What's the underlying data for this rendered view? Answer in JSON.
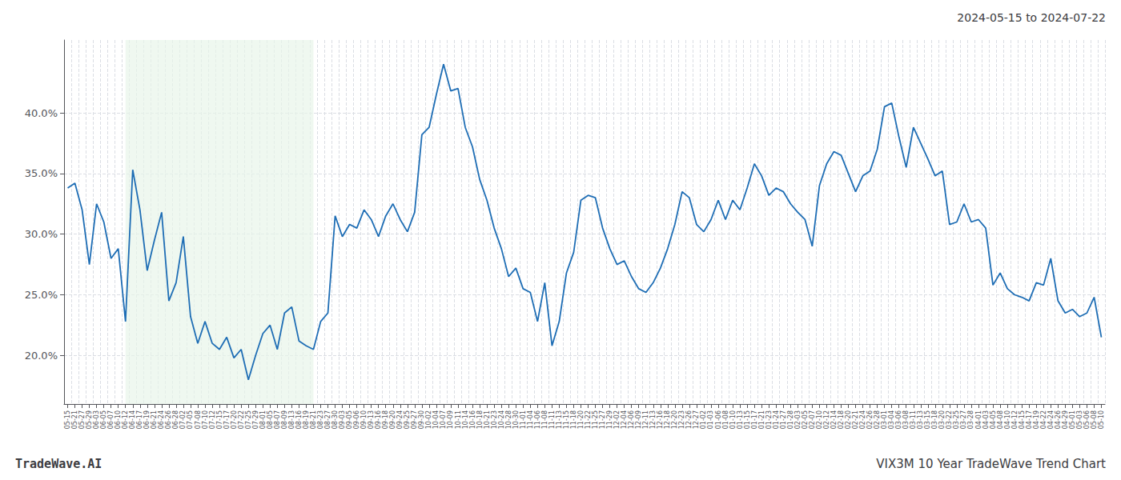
{
  "chart_data": {
    "type": "line",
    "title": "2024-05-15 to 2024-07-22",
    "annotations": [
      "TradeWave.AI",
      "VIX3M 10 Year TradeWave Trend Chart"
    ],
    "color": "#1f6eb5",
    "grid": true,
    "shade": {
      "from": "06-12",
      "to": "08-21",
      "color": "#e8f5e9"
    },
    "ylim": [
      16.0,
      46.0
    ],
    "yticks": [
      {
        "value": 20.0,
        "label": "20.0%"
      },
      {
        "value": 25.0,
        "label": "25.0%"
      },
      {
        "value": 30.0,
        "label": "30.0%"
      },
      {
        "value": 35.0,
        "label": "35.0%"
      },
      {
        "value": 40.0,
        "label": "40.0%"
      }
    ],
    "categories": [
      "05-15",
      "05-21",
      "05-27",
      "05-29",
      "06-03",
      "06-05",
      "06-07",
      "06-10",
      "06-12",
      "06-14",
      "06-17",
      "06-19",
      "06-21",
      "06-24",
      "06-26",
      "06-28",
      "07-02",
      "07-05",
      "07-08",
      "07-10",
      "07-12",
      "07-15",
      "07-17",
      "07-20",
      "07-22",
      "07-25",
      "07-29",
      "08-01",
      "08-05",
      "08-07",
      "08-09",
      "08-13",
      "08-16",
      "08-19",
      "08-21",
      "08-23",
      "08-27",
      "08-30",
      "09-03",
      "09-05",
      "09-06",
      "09-10",
      "09-13",
      "09-16",
      "09-18",
      "09-20",
      "09-24",
      "09-25",
      "09-27",
      "09-30",
      "10-02",
      "10-04",
      "10-07",
      "10-09",
      "10-11",
      "10-14",
      "10-16",
      "10-18",
      "10-21",
      "10-23",
      "10-24",
      "10-28",
      "10-30",
      "11-01",
      "11-04",
      "11-06",
      "11-08",
      "11-11",
      "11-13",
      "11-15",
      "11-18",
      "11-20",
      "11-22",
      "11-25",
      "11-27",
      "11-29",
      "12-02",
      "12-04",
      "12-06",
      "12-09",
      "12-11",
      "12-13",
      "12-16",
      "12-18",
      "12-20",
      "12-23",
      "12-26",
      "12-27",
      "01-02",
      "01-03",
      "01-06",
      "01-08",
      "01-10",
      "01-13",
      "01-15",
      "01-17",
      "01-21",
      "01-23",
      "01-24",
      "01-27",
      "01-28",
      "02-03",
      "02-05",
      "02-07",
      "02-10",
      "02-12",
      "02-14",
      "02-18",
      "02-20",
      "02-21",
      "02-24",
      "02-26",
      "02-28",
      "03-01",
      "03-04",
      "03-06",
      "03-08",
      "03-11",
      "03-13",
      "03-15",
      "03-18",
      "03-20",
      "03-22",
      "03-25",
      "03-27",
      "03-28",
      "04-01",
      "04-03",
      "04-05",
      "04-08",
      "04-10",
      "04-12",
      "04-15",
      "04-17",
      "04-19",
      "04-22",
      "04-24",
      "04-26",
      "04-29",
      "05-01",
      "05-03",
      "05-06",
      "05-08",
      "05-10"
    ],
    "values": [
      33.8,
      34.2,
      32.0,
      27.5,
      32.5,
      31.0,
      28.0,
      28.8,
      22.8,
      35.3,
      32.0,
      27.0,
      29.5,
      31.8,
      24.5,
      26.0,
      29.8,
      23.2,
      21.0,
      22.8,
      21.0,
      20.5,
      21.5,
      19.8,
      20.5,
      18.0,
      20.0,
      21.8,
      22.5,
      20.5,
      23.5,
      24.0,
      21.2,
      20.8,
      20.5,
      22.8,
      23.5,
      31.5,
      29.8,
      30.8,
      30.5,
      32.0,
      31.2,
      29.8,
      31.5,
      32.5,
      31.2,
      30.2,
      31.8,
      38.2,
      38.8,
      41.5,
      44.0,
      41.8,
      42.0,
      38.8,
      37.2,
      34.5,
      32.8,
      30.5,
      28.8,
      26.5,
      27.2,
      25.5,
      25.2,
      22.8,
      26.0,
      20.8,
      22.8,
      26.8,
      28.5,
      32.8,
      33.2,
      33.0,
      30.5,
      28.8,
      27.5,
      27.8,
      26.5,
      25.5,
      25.2,
      26.0,
      27.2,
      28.8,
      30.8,
      33.5,
      33.0,
      30.8,
      30.2,
      31.2,
      32.8,
      31.2,
      32.8,
      32.0,
      33.8,
      35.8,
      34.8,
      33.2,
      33.8,
      33.5,
      32.5,
      31.8,
      31.2,
      29.0,
      34.0,
      35.8,
      36.8,
      36.5,
      35.0,
      33.5,
      34.8,
      35.2,
      37.0,
      40.5,
      40.8,
      38.0,
      35.5,
      38.8,
      37.5,
      36.2,
      34.8,
      35.2,
      30.8,
      31.0,
      32.5,
      31.0,
      31.2,
      30.5,
      25.8,
      26.8,
      25.5,
      25.0,
      24.8,
      24.5,
      26.0,
      25.8,
      28.0,
      24.5,
      23.5,
      23.8,
      23.2,
      23.5,
      24.8,
      21.5
    ]
  }
}
